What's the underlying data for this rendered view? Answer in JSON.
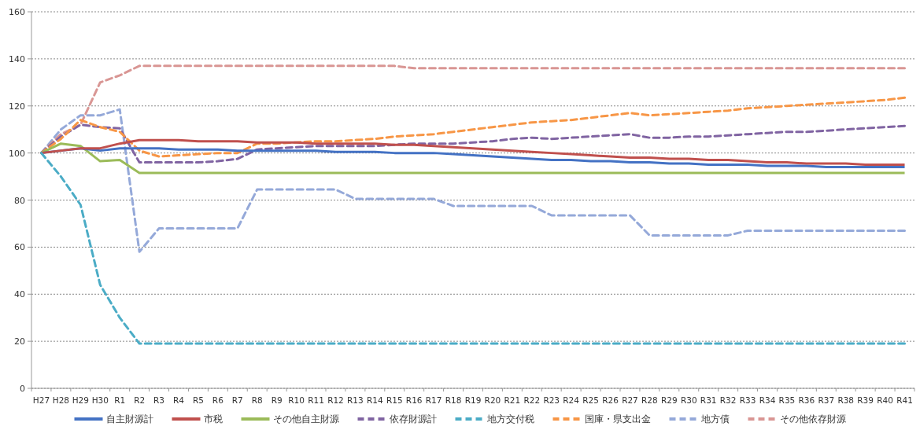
{
  "chart_data": {
    "type": "line",
    "categories": [
      "H27",
      "H28",
      "H29",
      "H30",
      "R1",
      "R2",
      "R3",
      "R4",
      "R5",
      "R6",
      "R7",
      "R8",
      "R9",
      "R10",
      "R11",
      "R12",
      "R13",
      "R14",
      "R15",
      "R16",
      "R17",
      "R18",
      "R19",
      "R20",
      "R21",
      "R22",
      "R23",
      "R24",
      "R25",
      "R26",
      "R27",
      "R28",
      "R29",
      "R30",
      "R31",
      "R32",
      "R33",
      "R34",
      "R35",
      "R36",
      "R37",
      "R38",
      "R39",
      "R40",
      "R41"
    ],
    "ylim": [
      0,
      160
    ],
    "yticks": [
      0,
      20,
      40,
      60,
      80,
      100,
      120,
      140,
      160
    ],
    "grid": "y",
    "legend": "bottom",
    "marker": "none",
    "series": [
      {
        "name": "自主財源計",
        "color": "#4472c4",
        "line_style": "solid",
        "values": [
          100,
          101,
          102,
          101,
          102,
          102,
          102,
          101.5,
          101.5,
          101.5,
          101,
          101,
          101,
          101,
          101,
          100.5,
          100.5,
          100.5,
          100,
          100,
          100,
          99.5,
          99,
          98.5,
          98,
          97.5,
          97,
          97,
          96.5,
          96.5,
          96,
          96,
          95.5,
          95.5,
          95,
          95,
          95,
          94.5,
          94.5,
          94.5,
          94,
          94,
          94,
          94,
          94
        ]
      },
      {
        "name": "市税",
        "color": "#c0504d",
        "line_style": "solid",
        "values": [
          100,
          101,
          102,
          102,
          104,
          105.5,
          105.5,
          105.5,
          105,
          105,
          105,
          104.5,
          104.5,
          104.5,
          104,
          104,
          104,
          104,
          103.5,
          103.5,
          103,
          102.5,
          102,
          101.5,
          101,
          100.5,
          100,
          99.5,
          99,
          98.5,
          98,
          98,
          97.5,
          97.5,
          97,
          97,
          96.5,
          96,
          96,
          95.5,
          95.5,
          95.5,
          95,
          95,
          95
        ]
      },
      {
        "name": "その他自主財源",
        "color": "#9bbb59",
        "line_style": "solid",
        "values": [
          100,
          104,
          103,
          96.5,
          97,
          91.5,
          91.5,
          91.5,
          91.5,
          91.5,
          91.5,
          91.5,
          91.5,
          91.5,
          91.5,
          91.5,
          91.5,
          91.5,
          91.5,
          91.5,
          91.5,
          91.5,
          91.5,
          91.5,
          91.5,
          91.5,
          91.5,
          91.5,
          91.5,
          91.5,
          91.5,
          91.5,
          91.5,
          91.5,
          91.5,
          91.5,
          91.5,
          91.5,
          91.5,
          91.5,
          91.5,
          91.5,
          91.5,
          91.5,
          91.5
        ]
      },
      {
        "name": "依存財源計",
        "color": "#8064a2",
        "line_style": "dashed",
        "values": [
          100,
          107,
          112,
          111,
          110.5,
          96,
          96,
          96,
          96,
          96.5,
          97.5,
          101.5,
          102,
          102.5,
          103,
          103,
          103,
          103,
          103.5,
          104,
          104,
          104,
          104.5,
          105,
          106,
          106.5,
          106,
          106.5,
          107,
          107.5,
          108,
          106.5,
          106.5,
          107,
          107,
          107.5,
          108,
          108.5,
          109,
          109,
          109.5,
          110,
          110.5,
          111,
          111.5
        ]
      },
      {
        "name": "地方交付税",
        "color": "#4bacc6",
        "line_style": "dashed",
        "values": [
          100,
          90,
          78,
          44,
          30,
          19,
          19,
          19,
          19,
          19,
          19,
          19,
          19,
          19,
          19,
          19,
          19,
          19,
          19,
          19,
          19,
          19,
          19,
          19,
          19,
          19,
          19,
          19,
          19,
          19,
          19,
          19,
          19,
          19,
          19,
          19,
          19,
          19,
          19,
          19,
          19,
          19,
          19,
          19,
          19
        ]
      },
      {
        "name": "国庫・県支出金",
        "color": "#f79646",
        "line_style": "dashed",
        "values": [
          100,
          106,
          114,
          111,
          109,
          101,
          98.5,
          99,
          99.5,
          100,
          100,
          104,
          104,
          104.5,
          105,
          105,
          105.5,
          106,
          107,
          107.5,
          108,
          109,
          110,
          111,
          112,
          113,
          113.5,
          114,
          115,
          116,
          117,
          116,
          116.5,
          117,
          117.5,
          118,
          119,
          119.5,
          120,
          120.5,
          121,
          121.5,
          122,
          122.5,
          123.5
        ]
      },
      {
        "name": "地方債",
        "color": "#95a9d9",
        "line_style": "dashed",
        "values": [
          100,
          110,
          116,
          116,
          118.5,
          58,
          68,
          68,
          68,
          68,
          68,
          84.5,
          84.5,
          84.5,
          84.5,
          84.5,
          80.5,
          80.5,
          80.5,
          80.5,
          80.5,
          77.5,
          77.5,
          77.5,
          77.5,
          77.5,
          73.5,
          73.5,
          73.5,
          73.5,
          73.5,
          65,
          65,
          65,
          65,
          65,
          67,
          67,
          67,
          67,
          67,
          67,
          67,
          67,
          67
        ]
      },
      {
        "name": "その他依存財源",
        "color": "#d99694",
        "line_style": "dashed",
        "values": [
          100,
          108,
          112,
          130,
          133,
          137,
          137,
          137,
          137,
          137,
          137,
          137,
          137,
          137,
          137,
          137,
          137,
          137,
          137,
          136,
          136,
          136,
          136,
          136,
          136,
          136,
          136,
          136,
          136,
          136,
          136,
          136,
          136,
          136,
          136,
          136,
          136,
          136,
          136,
          136,
          136,
          136,
          136,
          136,
          136
        ]
      }
    ]
  }
}
